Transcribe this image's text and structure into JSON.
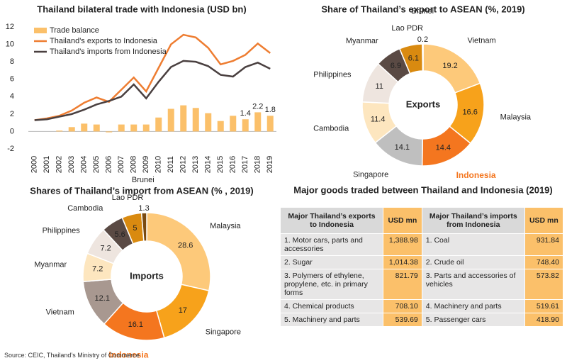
{
  "chart_data": [
    {
      "type": "bar",
      "title": "Thailand bilateral trade with Indonesia (USD bn)",
      "categories": [
        "2000",
        "2001",
        "2002",
        "2003",
        "2004",
        "2005",
        "2006",
        "2007",
        "2008",
        "2009",
        "2010",
        "2011",
        "2012",
        "2013",
        "2014",
        "2015",
        "2016",
        "2017",
        "2018",
        "2019"
      ],
      "ylim": [
        -2,
        12
      ],
      "yticks": [
        -2,
        0,
        2,
        4,
        6,
        8,
        10,
        12
      ],
      "legend": "top-left",
      "series": [
        {
          "name": "Trade balance",
          "type": "bar",
          "color": "#fbc06a",
          "values": [
            0.0,
            0.0,
            0.1,
            0.5,
            0.9,
            0.8,
            -0.1,
            0.8,
            0.8,
            0.8,
            1.6,
            2.6,
            3.0,
            2.7,
            2.1,
            1.2,
            1.8,
            1.4,
            2.2,
            1.8
          ],
          "value_labels": [
            null,
            null,
            null,
            null,
            null,
            null,
            null,
            null,
            null,
            null,
            null,
            null,
            null,
            null,
            null,
            null,
            null,
            "1.4",
            "2.2",
            "1.8"
          ]
        },
        {
          "name": "Thailand's exports to Indonesia",
          "type": "line",
          "color": "#ee7d31",
          "values": [
            1.3,
            1.5,
            1.8,
            2.4,
            3.3,
            3.9,
            3.4,
            4.8,
            6.2,
            4.6,
            7.3,
            10.0,
            11.1,
            10.8,
            9.6,
            7.7,
            8.1,
            8.8,
            10.1,
            9.0
          ]
        },
        {
          "name": "Thailand's imports from Indonesia",
          "type": "line",
          "color": "#4a4040",
          "values": [
            1.3,
            1.4,
            1.7,
            2.0,
            2.5,
            3.1,
            3.5,
            4.0,
            5.4,
            3.8,
            5.7,
            7.4,
            8.1,
            8.0,
            7.5,
            6.5,
            6.3,
            7.4,
            7.9,
            7.2
          ]
        }
      ]
    },
    {
      "type": "pie",
      "title": "Share of Thailand’s export to ASEAN  (%, 2019)",
      "center_label": "Exports",
      "categories": [
        "Vietnam",
        "Malaysia",
        "Indonesia",
        "Singapore",
        "Cambodia",
        "Philippines",
        "Myanmar",
        "Lao PDR",
        "Brunei"
      ],
      "values": [
        19.2,
        16.6,
        14.4,
        14.1,
        11.4,
        11.0,
        6.9,
        6.1,
        0.2
      ],
      "colors": [
        "#fdc97a",
        "#f7a21b",
        "#f4761f",
        "#bfbfbf",
        "#fde6bf",
        "#eee5df",
        "#5a4a44",
        "#d98a10",
        "#7a4a10"
      ],
      "highlight": {
        "index": 2,
        "color": "#f4761f"
      }
    },
    {
      "type": "pie",
      "title": "Shares of Thailand’s import from ASEAN (% , 2019)",
      "center_label": "Imports",
      "categories": [
        "Malaysia",
        "Singapore",
        "Indonesia",
        "Vietnam",
        "Myanmar",
        "Philippines",
        "Cambodia",
        "Lao PDR",
        "Brunei"
      ],
      "values": [
        28.6,
        17.0,
        16.1,
        12.1,
        7.2,
        7.2,
        5.6,
        5.0,
        1.3
      ],
      "colors": [
        "#fdc97a",
        "#f7a21b",
        "#f4761f",
        "#a89890",
        "#fde6bf",
        "#eee5df",
        "#5a4a44",
        "#d98a10",
        "#7a4a10"
      ],
      "highlight": {
        "index": 2,
        "color": "#f4761f"
      }
    }
  ],
  "table": {
    "title": "Major goods traded between Thailand and Indonesia (2019)",
    "columns": [
      "Major Thailand’s exports to Indonesia",
      "USD mn",
      "Major Thailand’s imports from Indonesia",
      "USD mn"
    ],
    "rows": [
      [
        "1. Motor cars, parts and accessories",
        "1,388.98",
        "1. Coal",
        "931.84"
      ],
      [
        "2. Sugar",
        "1,014.38",
        "2. Crude oil",
        "748.40"
      ],
      [
        "3. Polymers of ethylene, propylene, etc. in primary forms",
        "821.79",
        "3. Parts and accessories of vehicles",
        "573.82"
      ],
      [
        "4. Chemical products",
        "708.10",
        "4. Machinery and parts",
        "519.61"
      ],
      [
        "5. Machinery and parts",
        "539.69",
        "5. Passenger cars",
        "418.90"
      ]
    ]
  },
  "source": "Source: CEIC, Thailand’s Ministry of Commerce"
}
